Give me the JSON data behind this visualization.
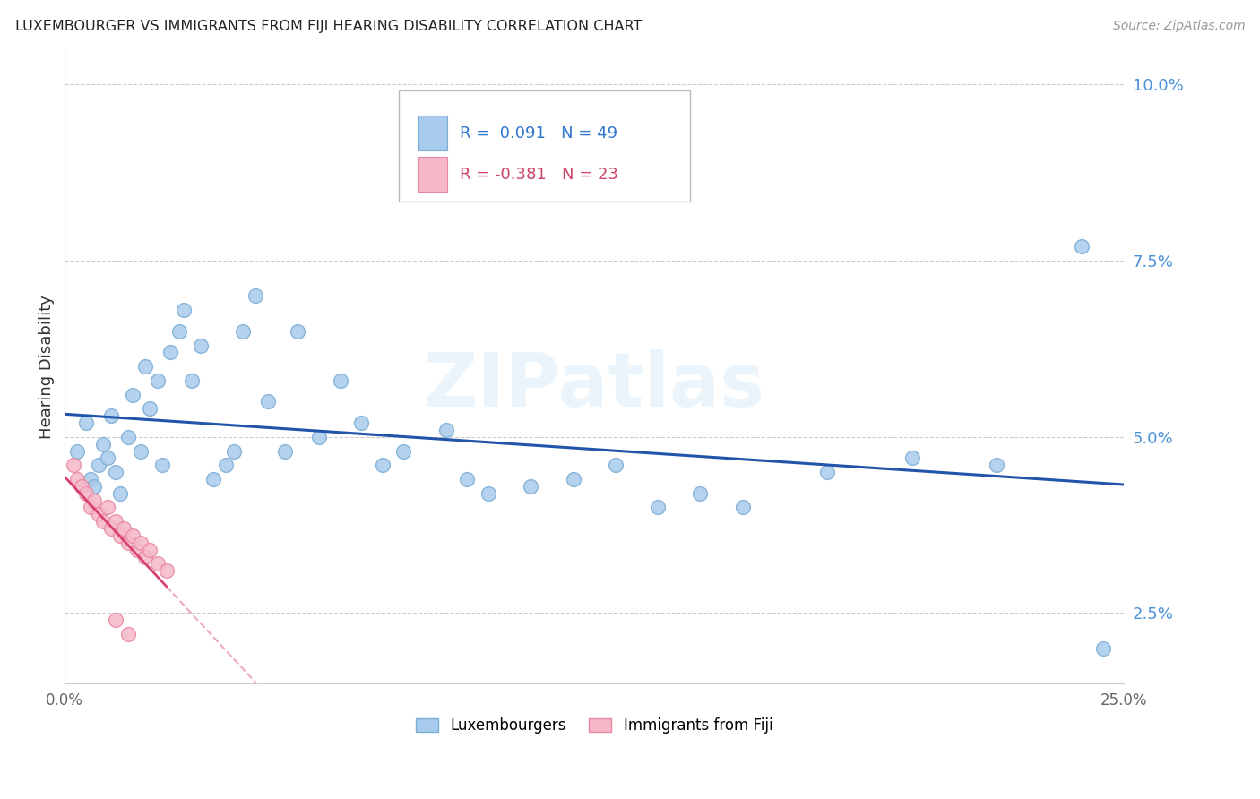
{
  "title": "LUXEMBOURGER VS IMMIGRANTS FROM FIJI HEARING DISABILITY CORRELATION CHART",
  "source": "Source: ZipAtlas.com",
  "ylabel": "Hearing Disability",
  "xlim": [
    0.0,
    0.25
  ],
  "ylim": [
    0.015,
    0.105
  ],
  "yticks": [
    0.025,
    0.05,
    0.075,
    0.1
  ],
  "ytick_labels": [
    "2.5%",
    "5.0%",
    "7.5%",
    "10.0%"
  ],
  "xticks": [
    0.0,
    0.05,
    0.1,
    0.15,
    0.2,
    0.25
  ],
  "xtick_labels": [
    "0.0%",
    "",
    "",
    "",
    "",
    "25.0%"
  ],
  "blue_R": 0.091,
  "blue_N": 49,
  "pink_R": -0.381,
  "pink_N": 23,
  "blue_color": "#A8CAEC",
  "blue_edge_color": "#7AADD4",
  "blue_line_color": "#2255AA",
  "pink_color": "#F5B8C8",
  "pink_edge_color": "#E888A0",
  "pink_line_color": "#D94070",
  "watermark": "ZIPatlas",
  "blue_scatter_x": [
    0.003,
    0.005,
    0.006,
    0.007,
    0.008,
    0.009,
    0.01,
    0.011,
    0.012,
    0.013,
    0.015,
    0.016,
    0.018,
    0.019,
    0.02,
    0.022,
    0.023,
    0.025,
    0.027,
    0.028,
    0.03,
    0.032,
    0.035,
    0.038,
    0.04,
    0.042,
    0.045,
    0.048,
    0.052,
    0.055,
    0.06,
    0.065,
    0.07,
    0.075,
    0.08,
    0.09,
    0.095,
    0.1,
    0.11,
    0.12,
    0.13,
    0.14,
    0.15,
    0.16,
    0.18,
    0.2,
    0.22,
    0.24,
    0.245
  ],
  "blue_scatter_y": [
    0.048,
    0.052,
    0.044,
    0.043,
    0.046,
    0.049,
    0.047,
    0.053,
    0.045,
    0.042,
    0.05,
    0.056,
    0.048,
    0.06,
    0.054,
    0.058,
    0.046,
    0.062,
    0.065,
    0.068,
    0.058,
    0.063,
    0.044,
    0.046,
    0.048,
    0.065,
    0.07,
    0.055,
    0.048,
    0.065,
    0.05,
    0.058,
    0.052,
    0.046,
    0.048,
    0.051,
    0.044,
    0.042,
    0.043,
    0.044,
    0.046,
    0.04,
    0.042,
    0.04,
    0.045,
    0.047,
    0.046,
    0.077,
    0.02
  ],
  "pink_scatter_x": [
    0.002,
    0.003,
    0.004,
    0.005,
    0.006,
    0.007,
    0.008,
    0.009,
    0.01,
    0.011,
    0.012,
    0.013,
    0.014,
    0.015,
    0.016,
    0.017,
    0.018,
    0.019,
    0.02,
    0.022,
    0.024,
    0.012,
    0.015
  ],
  "pink_scatter_y": [
    0.046,
    0.044,
    0.043,
    0.042,
    0.04,
    0.041,
    0.039,
    0.038,
    0.04,
    0.037,
    0.038,
    0.036,
    0.037,
    0.035,
    0.036,
    0.034,
    0.035,
    0.033,
    0.034,
    0.032,
    0.031,
    0.024,
    0.022
  ]
}
